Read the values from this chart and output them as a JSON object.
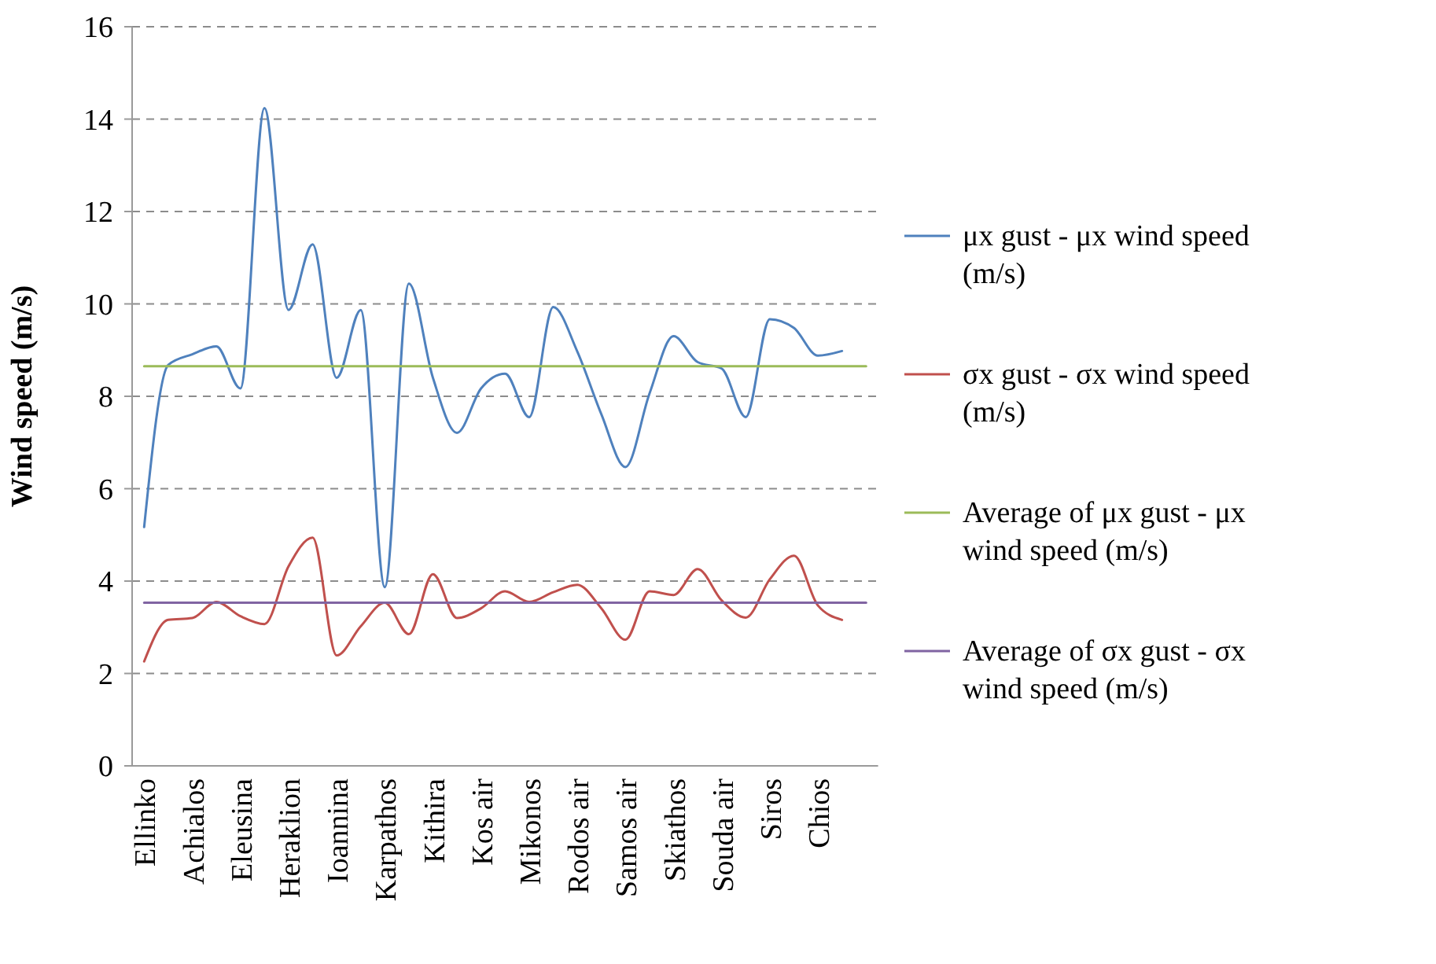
{
  "chart_data": {
    "type": "line",
    "ylabel": "Wind speed (m/s)",
    "categories": [
      "Ellinko",
      null,
      "Achialos",
      null,
      "Eleusina",
      null,
      "Heraklion",
      null,
      "Ioannina",
      null,
      "Karpathos",
      null,
      "Kithira",
      null,
      "Kos air",
      null,
      "Mikonos",
      null,
      "Rodos air",
      null,
      "Samos air",
      null,
      "Skiathos",
      null,
      "Souda air",
      null,
      "Siros",
      null,
      "Chios",
      null,
      null
    ],
    "series": [
      {
        "name": "μx gust - μx wind speed (m/s)",
        "color": "#4f81bd",
        "values": [
          5.17,
          8.68,
          8.91,
          9.08,
          8.17,
          14.24,
          9.87,
          11.29,
          8.4,
          9.87,
          3.87,
          10.44,
          8.4,
          7.21,
          8.17,
          8.49,
          7.55,
          9.93,
          8.97,
          7.61,
          6.47,
          8.06,
          9.3,
          8.74,
          8.6,
          7.55,
          9.67,
          9.48,
          8.88,
          8.98,
          null
        ]
      },
      {
        "name": "σx gust - σx wind speed (m/s)",
        "color": "#c0504d",
        "values": [
          2.26,
          3.16,
          3.2,
          3.55,
          3.24,
          3.07,
          4.32,
          4.94,
          2.39,
          3.02,
          3.53,
          2.85,
          4.15,
          3.2,
          3.41,
          3.78,
          3.55,
          3.76,
          3.92,
          3.41,
          2.73,
          3.78,
          3.7,
          4.26,
          3.58,
          3.21,
          4.04,
          4.55,
          3.47,
          3.16,
          null
        ]
      },
      {
        "name": "Average of μx gust - μx wind speed (m/s)",
        "color": "#9bbb59",
        "values": [
          8.65,
          8.65,
          8.65,
          8.65,
          8.65,
          8.65,
          8.65,
          8.65,
          8.65,
          8.65,
          8.65,
          8.65,
          8.65,
          8.65,
          8.65,
          8.65,
          8.65,
          8.65,
          8.65,
          8.65,
          8.65,
          8.65,
          8.65,
          8.65,
          8.65,
          8.65,
          8.65,
          8.65,
          8.65,
          8.65,
          8.65
        ]
      },
      {
        "name": "Average of σx gust - σx wind speed (m/s)",
        "color": "#8064a2",
        "values": [
          3.53,
          3.53,
          3.53,
          3.53,
          3.53,
          3.53,
          3.53,
          3.53,
          3.53,
          3.53,
          3.53,
          3.53,
          3.53,
          3.53,
          3.53,
          3.53,
          3.53,
          3.53,
          3.53,
          3.53,
          3.53,
          3.53,
          3.53,
          3.53,
          3.53,
          3.53,
          3.53,
          3.53,
          3.53,
          3.53,
          3.53
        ]
      }
    ],
    "ylim": [
      0,
      16
    ],
    "yticks": [
      0,
      2,
      4,
      6,
      8,
      10,
      12,
      14,
      16
    ],
    "grid": "y",
    "legend": "right",
    "marker": "none",
    "line_style": "solid"
  }
}
